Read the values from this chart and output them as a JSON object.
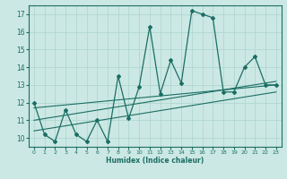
{
  "xlabel": "Humidex (Indice chaleur)",
  "ylabel": "",
  "xlim": [
    -0.5,
    23.5
  ],
  "ylim": [
    9.5,
    17.5
  ],
  "xticks": [
    0,
    1,
    2,
    3,
    4,
    5,
    6,
    7,
    8,
    9,
    10,
    11,
    12,
    13,
    14,
    15,
    16,
    17,
    18,
    19,
    20,
    21,
    22,
    23
  ],
  "yticks": [
    10,
    11,
    12,
    13,
    14,
    15,
    16,
    17
  ],
  "bg_color": "#cce8e4",
  "grid_color": "#b0d8d0",
  "line_color": "#1a6e64",
  "data_x": [
    0,
    1,
    2,
    3,
    4,
    5,
    6,
    7,
    8,
    9,
    10,
    11,
    12,
    13,
    14,
    15,
    16,
    17,
    18,
    19,
    20,
    21,
    22,
    23
  ],
  "data_y": [
    12.0,
    10.2,
    9.8,
    11.6,
    10.2,
    9.8,
    11.0,
    9.8,
    13.5,
    11.1,
    12.9,
    16.3,
    12.5,
    14.4,
    13.1,
    17.2,
    17.0,
    16.8,
    12.6,
    12.6,
    14.0,
    14.6,
    13.0,
    13.0
  ],
  "trend1_x": [
    0,
    23
  ],
  "trend1_y": [
    11.7,
    13.0
  ],
  "trend2_x": [
    0,
    23
  ],
  "trend2_y": [
    11.0,
    13.2
  ],
  "trend3_x": [
    0,
    23
  ],
  "trend3_y": [
    10.4,
    12.6
  ]
}
